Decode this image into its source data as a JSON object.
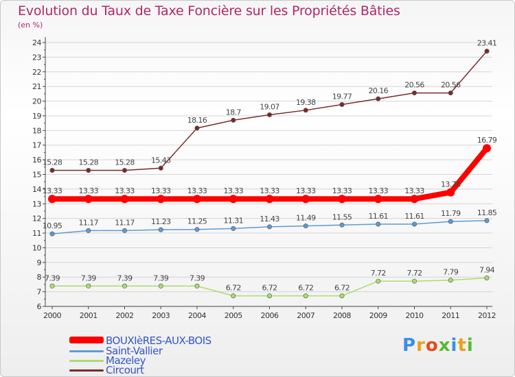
{
  "chart_data": {
    "type": "line",
    "title": "Evolution du Taux de Taxe Foncière sur les Propriétés Bâties",
    "unit": "(en %)",
    "categories": [
      "2000",
      "2001",
      "2002",
      "2003",
      "2004",
      "2005",
      "2006",
      "2007",
      "2008",
      "2009",
      "2010",
      "2011",
      "2012"
    ],
    "ylim": [
      6,
      24
    ],
    "yticks": [
      "6",
      "7",
      "8",
      "9",
      "10",
      "11",
      "12",
      "13",
      "14",
      "15",
      "16",
      "17",
      "18",
      "19",
      "20",
      "21",
      "22",
      "23",
      "24"
    ],
    "series": [
      {
        "name": "BOUXIèRES-AUX-BOIS",
        "color": "#ff0000",
        "values": [
          13.33,
          13.33,
          13.33,
          13.33,
          13.33,
          13.33,
          13.33,
          13.33,
          13.33,
          13.33,
          13.33,
          13.78,
          16.79
        ],
        "labels": [
          "13.33",
          "13.33",
          "13.33",
          "13.33",
          "13.33",
          "13.33",
          "13.33",
          "13.33",
          "13.33",
          "13.33",
          "13.33",
          "13.78",
          "16.79"
        ]
      },
      {
        "name": "Saint-Vallier",
        "color": "#5b9bd5",
        "values": [
          10.95,
          11.17,
          11.17,
          11.23,
          11.25,
          11.31,
          11.43,
          11.49,
          11.55,
          11.61,
          11.61,
          11.79,
          11.85
        ],
        "labels": [
          "10.95",
          "11.17",
          "11.17",
          "11.23",
          "11.25",
          "11.31",
          "11.43",
          "11.49",
          "11.55",
          "11.61",
          "11.61",
          "11.79",
          "11.85"
        ]
      },
      {
        "name": "Mazeley",
        "color": "#a9dd6e",
        "values": [
          7.39,
          7.39,
          7.39,
          7.39,
          7.39,
          6.72,
          6.72,
          6.72,
          6.72,
          7.72,
          7.72,
          7.79,
          7.94
        ],
        "labels": [
          "7.39",
          "7.39",
          "7.39",
          "7.39",
          "7.39",
          "6.72",
          "6.72",
          "6.72",
          "6.72",
          "7.72",
          "7.72",
          "7.79",
          "7.94"
        ]
      },
      {
        "name": "Circourt",
        "color": "#7b2a2a",
        "values": [
          15.28,
          15.28,
          15.28,
          15.43,
          18.16,
          18.7,
          19.07,
          19.38,
          19.77,
          20.16,
          20.56,
          20.56,
          23.41
        ],
        "labels": [
          "15.28",
          "15.28",
          "15.28",
          "15.43",
          "18.16",
          "18.7",
          "19.07",
          "19.38",
          "19.77",
          "20.16",
          "20.56",
          "20.56",
          "23.41"
        ]
      }
    ]
  },
  "logo": {
    "text": "Proxiti",
    "colors": [
      "#3a8ee6",
      "#e8a21a",
      "#e84a1a",
      "#5ab82e",
      "#3a8ee6",
      "#e8a21a",
      "#5ab82e"
    ]
  }
}
